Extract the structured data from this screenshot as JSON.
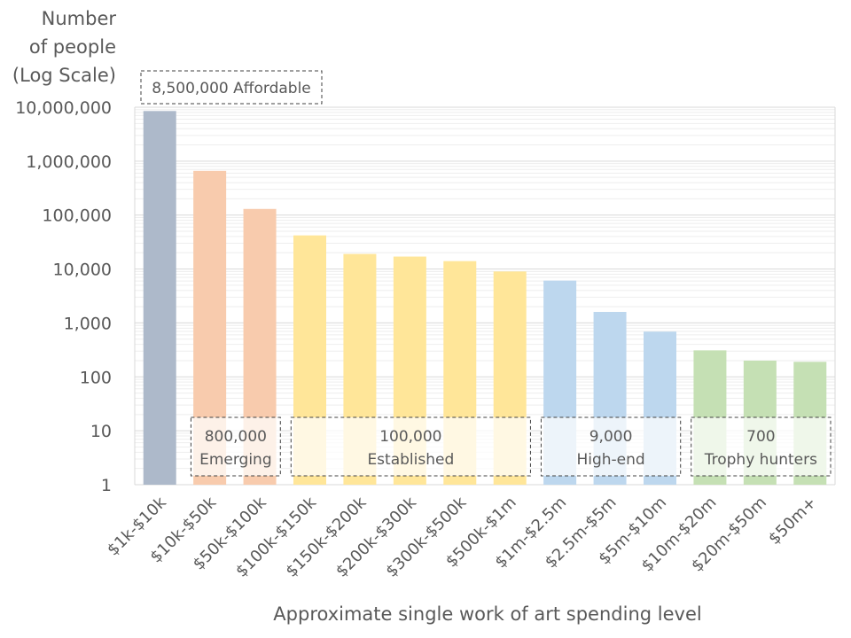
{
  "chart_data": {
    "type": "bar",
    "title": "",
    "ylabel_lines": [
      "Number",
      "of people",
      "(Log Scale)"
    ],
    "xlabel": "Approximate single work of art spending level",
    "yscale": "log",
    "ylim": [
      1,
      10000000
    ],
    "grid": true,
    "yticks": [
      1,
      10,
      100,
      1000,
      10000,
      100000,
      1000000,
      10000000
    ],
    "ytick_labels": [
      "1",
      "10",
      "100",
      "1,000",
      "10,000",
      "100,000",
      "1,000,000",
      "10,000,000"
    ],
    "categories": [
      "$1k-$10k",
      "$10k-$50k",
      "$50k-$100k",
      "$100k-$150k",
      "$150k-$200k",
      "$200k-$300k",
      "$300k-$500k",
      "$500k-$1m",
      "$1m-$2.5m",
      "$2.5m-$5m",
      "$5m-$10m",
      "$10m-$20m",
      "$20m-$50m",
      "$50m+"
    ],
    "values": [
      8500000,
      660000,
      130000,
      42000,
      19000,
      17000,
      14000,
      9000,
      6100,
      1600,
      690,
      310,
      200,
      190
    ],
    "colors": [
      "#adb9ca",
      "#f8cbad",
      "#f8cbad",
      "#ffe699",
      "#ffe699",
      "#ffe699",
      "#ffe699",
      "#ffe699",
      "#bdd7ee",
      "#bdd7ee",
      "#bdd7ee",
      "#c5e0b4",
      "#c5e0b4",
      "#c5e0b4"
    ],
    "groups": [
      {
        "total": "8,500,000",
        "name": "Affordable",
        "from": 0,
        "to": 0,
        "position": "top"
      },
      {
        "total": "800,000",
        "name": "Emerging",
        "from": 1,
        "to": 2,
        "position": "bottom"
      },
      {
        "total": "100,000",
        "name": "Established",
        "from": 3,
        "to": 7,
        "position": "bottom"
      },
      {
        "total": "9,000",
        "name": "High-end",
        "from": 8,
        "to": 10,
        "position": "bottom"
      },
      {
        "total": "700",
        "name": "Trophy hunters",
        "from": 11,
        "to": 13,
        "position": "bottom"
      }
    ]
  }
}
